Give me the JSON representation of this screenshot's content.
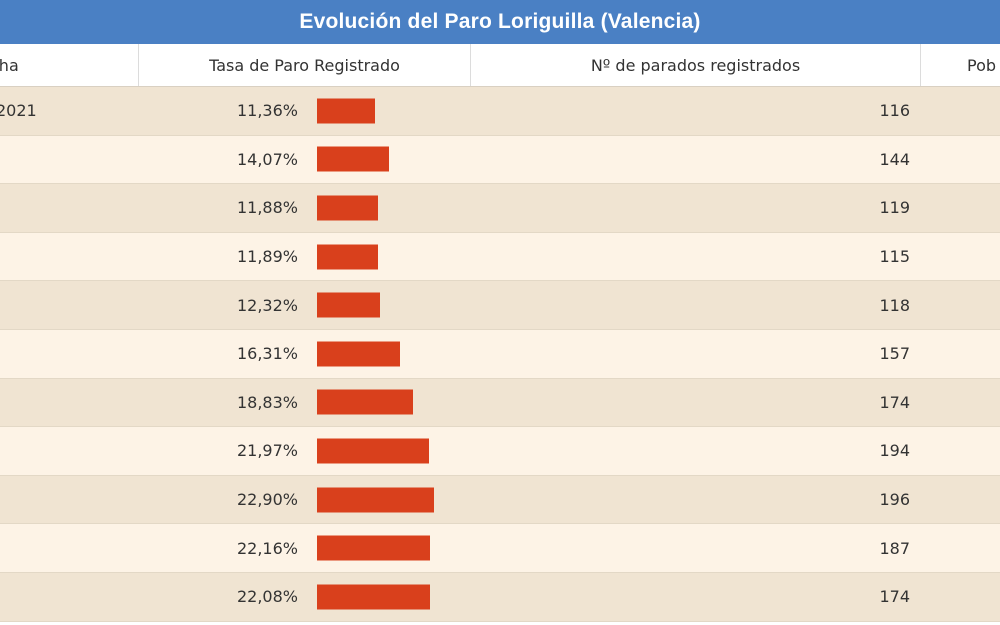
{
  "title": "Evolución del Paro Loriguilla (Valencia)",
  "columns": {
    "fecha": "cha",
    "tasa": "Tasa de Paro Registrado",
    "parados": "Nº de parados registrados",
    "poblacion": "Pob"
  },
  "colors": {
    "title_bg": "#4a80c4",
    "bar": "#d9401c",
    "row_odd": "#f0e4d2",
    "row_even": "#fdf3e6"
  },
  "chart_data": {
    "type": "table",
    "title": "Evolución del Paro Loriguilla (Valencia)",
    "bar_scale_max": 35,
    "rows": [
      {
        "fecha": "2021",
        "tasa": "11,36%",
        "tasa_value": 11.36,
        "parados": "116"
      },
      {
        "fecha": "",
        "tasa": "14,07%",
        "tasa_value": 14.07,
        "parados": "144"
      },
      {
        "fecha": "",
        "tasa": "11,88%",
        "tasa_value": 11.88,
        "parados": "119"
      },
      {
        "fecha": "",
        "tasa": "11,89%",
        "tasa_value": 11.89,
        "parados": "115"
      },
      {
        "fecha": "",
        "tasa": "12,32%",
        "tasa_value": 12.32,
        "parados": "118"
      },
      {
        "fecha": "",
        "tasa": "16,31%",
        "tasa_value": 16.31,
        "parados": "157"
      },
      {
        "fecha": "",
        "tasa": "18,83%",
        "tasa_value": 18.83,
        "parados": "174"
      },
      {
        "fecha": "",
        "tasa": "21,97%",
        "tasa_value": 21.97,
        "parados": "194"
      },
      {
        "fecha": "",
        "tasa": "22,90%",
        "tasa_value": 22.9,
        "parados": "196"
      },
      {
        "fecha": "",
        "tasa": "22,16%",
        "tasa_value": 22.16,
        "parados": "187"
      },
      {
        "fecha": "",
        "tasa": "22,08%",
        "tasa_value": 22.08,
        "parados": "174"
      }
    ]
  }
}
